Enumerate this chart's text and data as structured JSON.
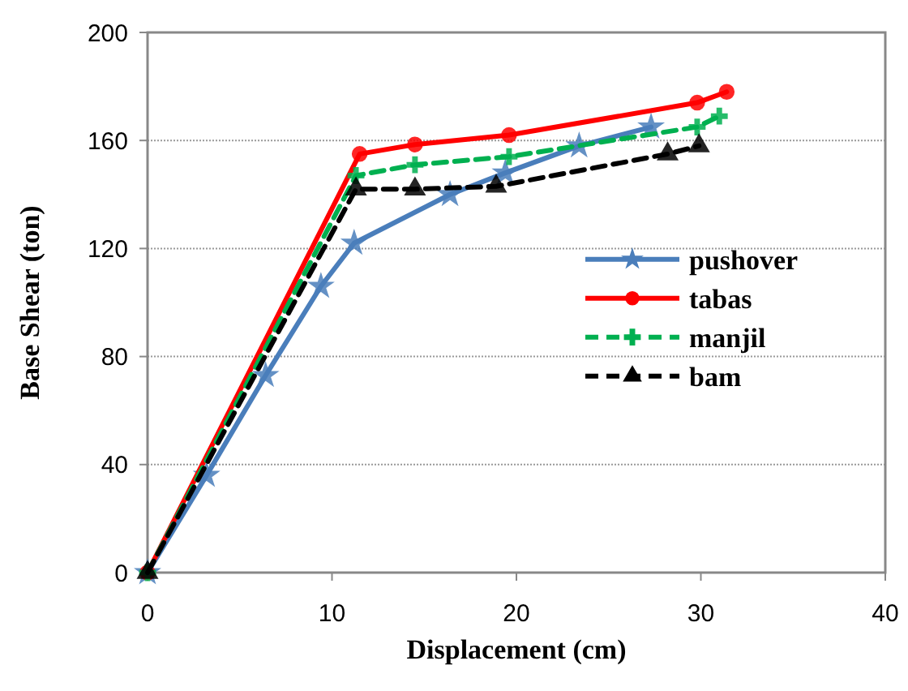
{
  "chart_data": {
    "type": "line",
    "xlabel": "Displacement (cm)",
    "ylabel": "Base Shear (ton)",
    "xlim": [
      0,
      40
    ],
    "xticks": [
      0,
      10,
      20,
      30,
      40
    ],
    "ylim": [
      0,
      200
    ],
    "yticks": [
      0,
      40,
      80,
      120,
      160,
      200
    ],
    "grid": "y",
    "legend": "right",
    "line_style": "solid",
    "series": [
      {
        "name": "pushover",
        "color": "#4a7ebb",
        "marker": "star",
        "x": [
          0,
          3.2,
          6.4,
          9.4,
          11.2,
          16.4,
          19.4,
          23.4,
          27.3
        ],
        "values": [
          0,
          36,
          73,
          106,
          122,
          140,
          148,
          158,
          165
        ]
      },
      {
        "name": "tabas",
        "color": "#ff0000",
        "marker": "circle",
        "x": [
          0,
          11.5,
          14.5,
          19.6,
          29.8,
          31.4
        ],
        "values": [
          0,
          155,
          158.5,
          162,
          174,
          178
        ]
      },
      {
        "name": "manjil",
        "color": "#00b050",
        "marker": "cross",
        "line_style": "dashed",
        "x": [
          0,
          11.3,
          14.5,
          19.6,
          29.8,
          31
        ],
        "values": [
          0,
          147,
          151,
          154,
          165,
          169
        ]
      },
      {
        "name": "bam",
        "color": "#000000",
        "marker": "triangle",
        "line_style": "dashed",
        "x": [
          0,
          11.3,
          14.5,
          18.9,
          28.2,
          29.9
        ],
        "values": [
          0,
          142,
          142,
          143,
          155,
          158
        ]
      }
    ]
  }
}
